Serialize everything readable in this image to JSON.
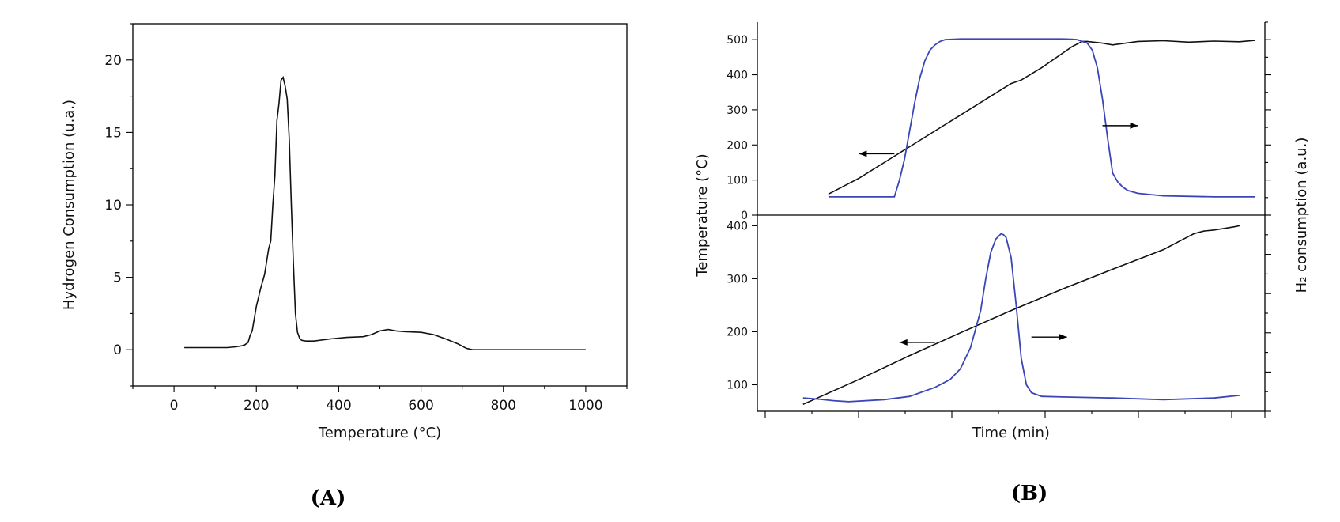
{
  "chart_data": [
    {
      "type": "line",
      "caption": "(A)",
      "xlabel": "Temperature (°C)",
      "ylabel": "Hydrogen Consumption (u.a.)",
      "xlim": [
        -100,
        1100
      ],
      "ylim": [
        -2.5,
        22.5
      ],
      "xticks": [
        0,
        200,
        400,
        600,
        800,
        1000
      ],
      "yticks": [
        0,
        5,
        10,
        15,
        20
      ],
      "series": [
        {
          "color": "#111111",
          "x": [
            25,
            100,
            130,
            150,
            170,
            180,
            185,
            190,
            200,
            210,
            220,
            230,
            235,
            240,
            245,
            250,
            255,
            260,
            265,
            270,
            275,
            280,
            285,
            290,
            295,
            300,
            305,
            310,
            320,
            340,
            380,
            420,
            460,
            480,
            500,
            520,
            540,
            560,
            600,
            630,
            660,
            690,
            710,
            725,
            760,
            800,
            900,
            1000
          ],
          "y": [
            0.15,
            0.15,
            0.15,
            0.2,
            0.3,
            0.5,
            1.0,
            1.3,
            3.0,
            4.2,
            5.2,
            7.0,
            7.5,
            10.0,
            12.0,
            15.8,
            17.0,
            18.6,
            18.8,
            18.2,
            17.3,
            14.5,
            10.0,
            6.0,
            2.5,
            1.2,
            0.8,
            0.65,
            0.6,
            0.6,
            0.75,
            0.85,
            0.9,
            1.05,
            1.3,
            1.4,
            1.3,
            1.25,
            1.2,
            1.05,
            0.75,
            0.4,
            0.1,
            0.0,
            0.0,
            0.0,
            0.0,
            0.0
          ]
        }
      ]
    },
    {
      "type": "line",
      "caption": "(B)",
      "xlabel": "Time (min)",
      "ylabel": "Temperature (°C)",
      "ylabel_right": "H₂ consumption (a.u.)",
      "panels": [
        {
          "position": "top",
          "xlim": [
            0,
            100
          ],
          "ylim": [
            0,
            550
          ],
          "yticks": [
            0,
            100,
            200,
            300,
            400,
            500
          ],
          "arrows": [
            {
              "direction": "left",
              "x": [
                20,
                27
              ],
              "y": 175
            },
            {
              "direction": "right",
              "x": [
                68,
                75
              ],
              "y": 255
            }
          ],
          "series": [
            {
              "color": "#111111",
              "x": [
                14,
                20,
                25,
                30,
                35,
                40,
                45,
                50,
                52,
                56,
                60,
                62,
                64,
                65,
                68,
                70,
                75,
                80,
                85,
                90,
                95,
                98
              ],
              "y": [
                60,
                105,
                150,
                195,
                240,
                285,
                330,
                375,
                385,
                420,
                460,
                480,
                495,
                495,
                490,
                485,
                495,
                497,
                493,
                496,
                494,
                498
              ]
            },
            {
              "color": "#3a45b8",
              "x": [
                14,
                20,
                25,
                27,
                28,
                29,
                30,
                31,
                32,
                33,
                34,
                35,
                36,
                37,
                40,
                50,
                60,
                62,
                63,
                64,
                65,
                66,
                67,
                68,
                69,
                70,
                71,
                72,
                73,
                75,
                80,
                90,
                98
              ],
              "y": [
                52,
                52,
                52,
                52,
                100,
                160,
                240,
                320,
                390,
                440,
                470,
                485,
                495,
                500,
                502,
                502,
                502,
                501,
                500,
                495,
                490,
                470,
                420,
                330,
                220,
                120,
                95,
                80,
                70,
                62,
                55,
                52,
                52
              ]
            }
          ]
        },
        {
          "position": "bottom",
          "xlim": [
            0,
            100
          ],
          "ylim": [
            50,
            420
          ],
          "yticks": [
            100,
            200,
            300,
            400
          ],
          "arrows": [
            {
              "direction": "left",
              "x": [
                28,
                35
              ],
              "y": 180
            },
            {
              "direction": "right",
              "x": [
                54,
                61
              ],
              "y": 190
            }
          ],
          "series": [
            {
              "color": "#111111",
              "x": [
                9,
                20,
                30,
                40,
                50,
                60,
                70,
                80,
                84,
                86,
                88,
                90,
                92,
                94,
                95
              ],
              "y": [
                63,
                110,
                155,
                198,
                240,
                280,
                318,
                355,
                375,
                385,
                390,
                392,
                395,
                398,
                400
              ]
            },
            {
              "color": "#3a45b8",
              "x": [
                9,
                12,
                15,
                18,
                25,
                30,
                35,
                38,
                40,
                42,
                44,
                45,
                46,
                47,
                48,
                48.5,
                49,
                50,
                51,
                52,
                53,
                54,
                56,
                60,
                70,
                80,
                90,
                95
              ],
              "y": [
                75,
                73,
                70,
                68,
                72,
                78,
                95,
                110,
                130,
                170,
                240,
                300,
                350,
                375,
                385,
                383,
                378,
                340,
                250,
                150,
                100,
                85,
                78,
                77,
                75,
                72,
                75,
                80
              ]
            }
          ]
        }
      ]
    }
  ]
}
